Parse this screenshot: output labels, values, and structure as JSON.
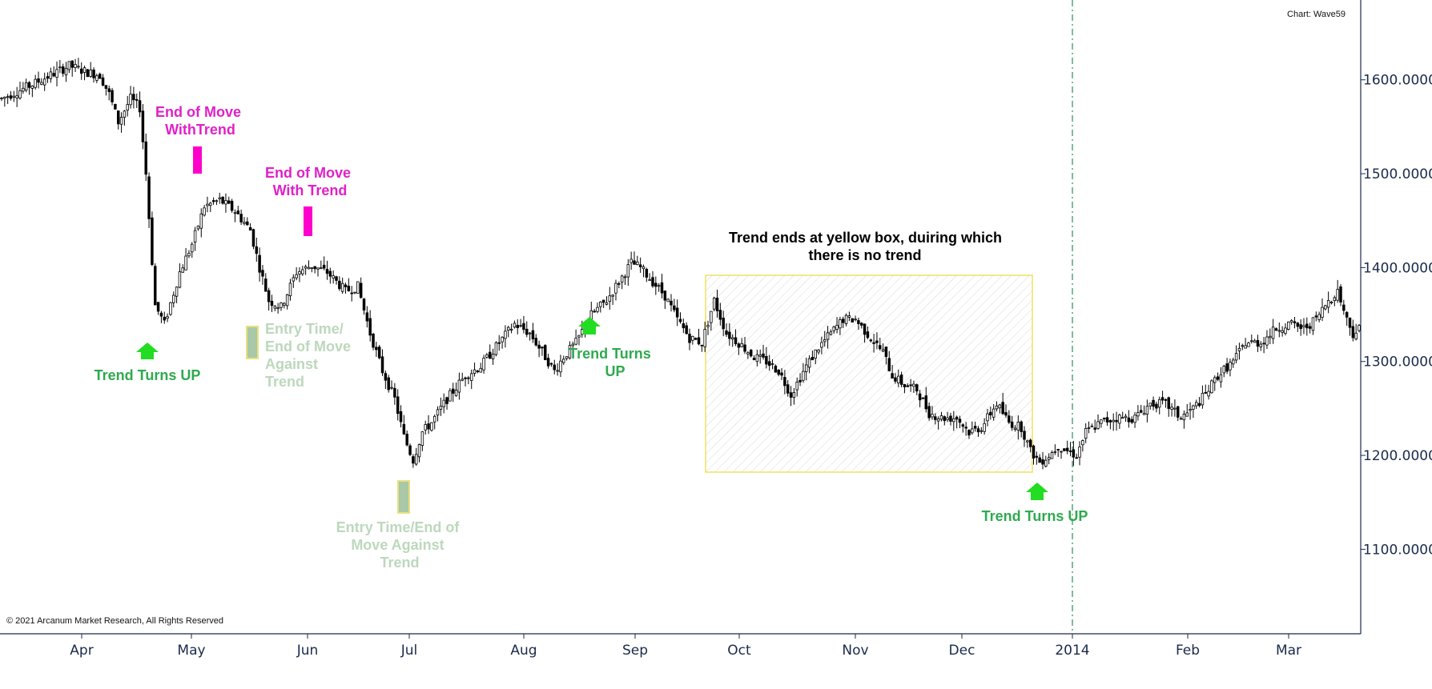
{
  "chart_data": {
    "type": "candlestick",
    "title": "Chart: Wave59",
    "copyright": "© 2021 Arcanum Market Research, All Rights Reserved",
    "ylim": [
      1010,
      1685
    ],
    "y_ticks": [
      "1100.0000",
      "1200.0000",
      "1300.0000",
      "1400.0000",
      "1500.0000",
      "1600.0000"
    ],
    "x_ticks": [
      "Apr",
      "May",
      "Jun",
      "Jul",
      "Aug",
      "Sep",
      "Oct",
      "Nov",
      "Dec",
      "2014",
      "Feb",
      "Mar"
    ],
    "price_path": [
      [
        0,
        1580
      ],
      [
        10,
        1595
      ],
      [
        22,
        1615
      ],
      [
        28,
        1608
      ],
      [
        32,
        1605
      ],
      [
        35,
        1585
      ],
      [
        38,
        1555
      ],
      [
        42,
        1580
      ],
      [
        45,
        1570
      ],
      [
        47,
        1500
      ],
      [
        50,
        1360
      ],
      [
        53,
        1340
      ],
      [
        58,
        1395
      ],
      [
        62,
        1425
      ],
      [
        66,
        1465
      ],
      [
        71,
        1472
      ],
      [
        76,
        1460
      ],
      [
        81,
        1440
      ],
      [
        84,
        1400
      ],
      [
        87,
        1365
      ],
      [
        91,
        1358
      ],
      [
        96,
        1395
      ],
      [
        101,
        1402
      ],
      [
        106,
        1395
      ],
      [
        112,
        1375
      ],
      [
        116,
        1380
      ],
      [
        120,
        1330
      ],
      [
        124,
        1290
      ],
      [
        128,
        1260
      ],
      [
        131,
        1220
      ],
      [
        134,
        1195
      ],
      [
        137,
        1225
      ],
      [
        140,
        1235
      ],
      [
        145,
        1260
      ],
      [
        151,
        1285
      ],
      [
        156,
        1295
      ],
      [
        162,
        1320
      ],
      [
        167,
        1340
      ],
      [
        172,
        1330
      ],
      [
        176,
        1310
      ],
      [
        180,
        1290
      ],
      [
        183,
        1305
      ],
      [
        187,
        1320
      ],
      [
        192,
        1350
      ],
      [
        197,
        1365
      ],
      [
        201,
        1385
      ],
      [
        205,
        1405
      ],
      [
        208,
        1400
      ],
      [
        212,
        1385
      ],
      [
        216,
        1370
      ],
      [
        220,
        1345
      ],
      [
        224,
        1325
      ],
      [
        228,
        1320
      ],
      [
        232,
        1365
      ],
      [
        236,
        1330
      ],
      [
        240,
        1320
      ],
      [
        245,
        1305
      ],
      [
        249,
        1300
      ],
      [
        253,
        1290
      ],
      [
        257,
        1265
      ],
      [
        262,
        1295
      ],
      [
        266,
        1315
      ],
      [
        270,
        1330
      ],
      [
        274,
        1345
      ],
      [
        278,
        1345
      ],
      [
        283,
        1325
      ],
      [
        287,
        1310
      ],
      [
        290,
        1285
      ],
      [
        294,
        1275
      ],
      [
        298,
        1270
      ],
      [
        302,
        1245
      ],
      [
        306,
        1240
      ],
      [
        311,
        1240
      ],
      [
        315,
        1225
      ],
      [
        319,
        1230
      ],
      [
        324,
        1255
      ],
      [
        328,
        1235
      ],
      [
        332,
        1230
      ],
      [
        335,
        1205
      ],
      [
        338,
        1193
      ],
      [
        341,
        1200
      ],
      [
        344,
        1210
      ],
      [
        347,
        1205
      ],
      [
        350,
        1200
      ],
      [
        353,
        1225
      ],
      [
        358,
        1235
      ],
      [
        363,
        1240
      ],
      [
        369,
        1240
      ],
      [
        374,
        1255
      ],
      [
        379,
        1255
      ],
      [
        384,
        1240
      ],
      [
        388,
        1250
      ],
      [
        392,
        1265
      ],
      [
        396,
        1285
      ],
      [
        401,
        1300
      ],
      [
        405,
        1320
      ],
      [
        410,
        1320
      ],
      [
        415,
        1335
      ],
      [
        419,
        1340
      ],
      [
        424,
        1335
      ],
      [
        428,
        1345
      ],
      [
        432,
        1365
      ],
      [
        435,
        1375
      ],
      [
        438,
        1345
      ],
      [
        440,
        1330
      ],
      [
        442,
        1335
      ]
    ],
    "annotations": [
      {
        "lines": [
          "End of Move",
          "WithTrend"
        ],
        "color": "#e020c8"
      },
      {
        "lines": [
          "End of Move",
          "With Trend"
        ],
        "color": "#e020c8"
      },
      {
        "lines": [
          "Trend Turns UP"
        ],
        "color": "#2eaa4e"
      },
      {
        "lines": [
          "Entry Time/",
          "End of Move",
          "Against",
          "Trend"
        ],
        "color": "#bcd8bc"
      },
      {
        "lines": [
          "Entry Time/End of",
          "Move Against",
          "Trend"
        ],
        "color": "#bcd8bc"
      },
      {
        "lines": [
          "Trend Turns",
          "UP"
        ],
        "color": "#2eaa4e"
      },
      {
        "lines": [
          "Trend ends at yellow box, duiring which",
          "there is no trend"
        ],
        "color": "#000000"
      },
      {
        "lines": [
          "Trend Turns UP"
        ],
        "color": "#2eaa4e"
      }
    ],
    "colors": {
      "up_arrow": "#22dd22",
      "magenta_box": "#ff00cc",
      "entry_box_fill": "#a8c8a8",
      "entry_box_border": "#e8e080",
      "yellow_box_border": "#f0e060",
      "axis": "#1a2a4a"
    }
  }
}
